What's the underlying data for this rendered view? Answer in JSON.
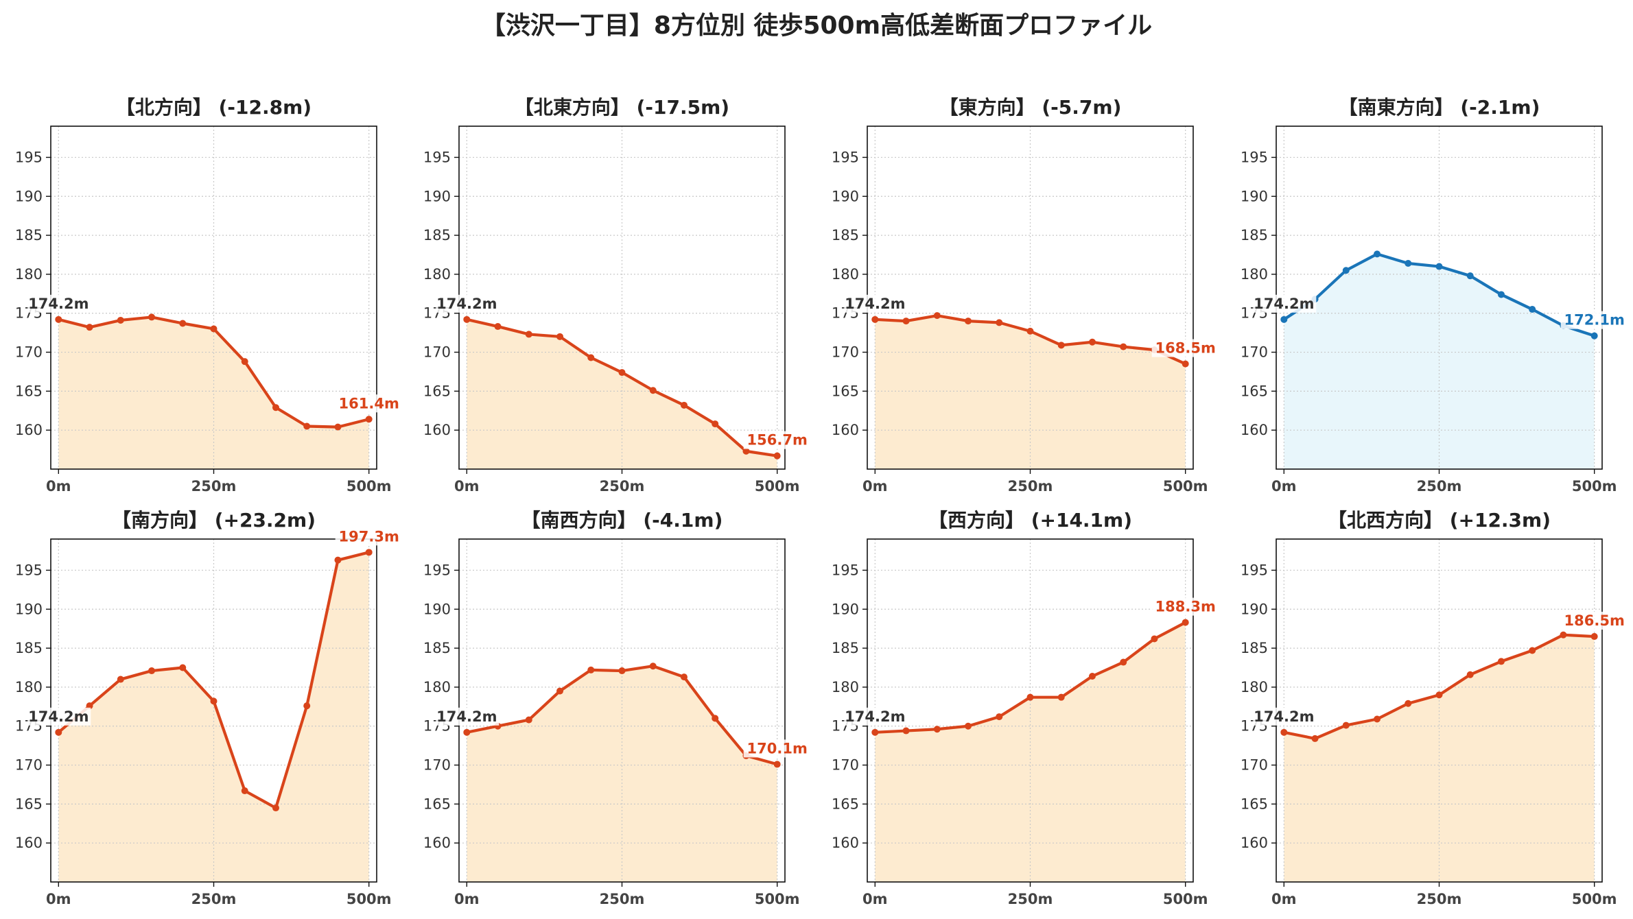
{
  "title": "【渋沢一丁目】8方位別 徒歩500m高低差断面プロファイル",
  "colors": {
    "warm_line": "#d9441a",
    "warm_fill": "#fdebd0",
    "cool_line": "#1a75b8",
    "cool_fill": "#e8f6fb",
    "start_label": "#333333",
    "grid": "#c8c8c8"
  },
  "chart_data": [
    {
      "type": "area",
      "title": "【北方向】 (-12.8m)",
      "x": [
        0,
        50,
        100,
        150,
        200,
        250,
        300,
        350,
        400,
        450,
        500
      ],
      "y": [
        174.2,
        173.2,
        174.1,
        174.5,
        173.7,
        173.0,
        168.8,
        162.9,
        160.5,
        160.4,
        161.4
      ],
      "start_label": "174.2m",
      "end_label": "161.4m",
      "x_ticks": [
        "0m",
        "250m",
        "500m"
      ],
      "y_ticks": [
        "160",
        "165",
        "170",
        "175",
        "180",
        "185",
        "190",
        "195"
      ],
      "ylim": [
        155,
        199
      ],
      "grid": true,
      "theme": "warm"
    },
    {
      "type": "area",
      "title": "【北東方向】 (-17.5m)",
      "x": [
        0,
        50,
        100,
        150,
        200,
        250,
        300,
        350,
        400,
        450,
        500
      ],
      "y": [
        174.2,
        173.3,
        172.3,
        172.0,
        169.3,
        167.4,
        165.1,
        163.2,
        160.8,
        157.3,
        156.7
      ],
      "start_label": "174.2m",
      "end_label": "156.7m",
      "x_ticks": [
        "0m",
        "250m",
        "500m"
      ],
      "y_ticks": [
        "160",
        "165",
        "170",
        "175",
        "180",
        "185",
        "190",
        "195"
      ],
      "ylim": [
        155,
        199
      ],
      "grid": true,
      "theme": "warm"
    },
    {
      "type": "area",
      "title": "【東方向】 (-5.7m)",
      "x": [
        0,
        50,
        100,
        150,
        200,
        250,
        300,
        350,
        400,
        450,
        500
      ],
      "y": [
        174.2,
        174.0,
        174.7,
        174.0,
        173.8,
        172.7,
        170.9,
        171.3,
        170.7,
        170.3,
        168.5
      ],
      "start_label": "174.2m",
      "end_label": "168.5m",
      "x_ticks": [
        "0m",
        "250m",
        "500m"
      ],
      "y_ticks": [
        "160",
        "165",
        "170",
        "175",
        "180",
        "185",
        "190",
        "195"
      ],
      "ylim": [
        155,
        199
      ],
      "grid": true,
      "theme": "warm"
    },
    {
      "type": "area",
      "title": "【南東方向】 (-2.1m)",
      "x": [
        0,
        50,
        100,
        150,
        200,
        250,
        300,
        350,
        400,
        450,
        500
      ],
      "y": [
        174.2,
        176.8,
        180.5,
        182.6,
        181.4,
        181.0,
        179.8,
        177.4,
        175.5,
        173.4,
        172.1
      ],
      "start_label": "174.2m",
      "end_label": "172.1m",
      "x_ticks": [
        "0m",
        "250m",
        "500m"
      ],
      "y_ticks": [
        "160",
        "165",
        "170",
        "175",
        "180",
        "185",
        "190",
        "195"
      ],
      "ylim": [
        155,
        199
      ],
      "grid": true,
      "theme": "cool"
    },
    {
      "type": "area",
      "title": "【南方向】 (+23.2m)",
      "x": [
        0,
        50,
        100,
        150,
        200,
        250,
        300,
        350,
        400,
        450,
        500
      ],
      "y": [
        174.2,
        177.6,
        181.0,
        182.1,
        182.5,
        178.2,
        166.7,
        164.5,
        177.6,
        196.3,
        197.3
      ],
      "start_label": "174.2m",
      "end_label": "197.3m",
      "x_ticks": [
        "0m",
        "250m",
        "500m"
      ],
      "y_ticks": [
        "160",
        "165",
        "170",
        "175",
        "180",
        "185",
        "190",
        "195"
      ],
      "ylim": [
        155,
        199
      ],
      "grid": true,
      "theme": "warm"
    },
    {
      "type": "area",
      "title": "【南西方向】 (-4.1m)",
      "x": [
        0,
        50,
        100,
        150,
        200,
        250,
        300,
        350,
        400,
        450,
        500
      ],
      "y": [
        174.2,
        175.0,
        175.8,
        179.5,
        182.2,
        182.1,
        182.7,
        181.3,
        176.0,
        171.2,
        170.1
      ],
      "start_label": "174.2m",
      "end_label": "170.1m",
      "x_ticks": [
        "0m",
        "250m",
        "500m"
      ],
      "y_ticks": [
        "160",
        "165",
        "170",
        "175",
        "180",
        "185",
        "190",
        "195"
      ],
      "ylim": [
        155,
        199
      ],
      "grid": true,
      "theme": "warm"
    },
    {
      "type": "area",
      "title": "【西方向】 (+14.1m)",
      "x": [
        0,
        50,
        100,
        150,
        200,
        250,
        300,
        350,
        400,
        450,
        500
      ],
      "y": [
        174.2,
        174.4,
        174.6,
        175.0,
        176.2,
        178.7,
        178.7,
        181.4,
        183.2,
        186.2,
        188.3
      ],
      "start_label": "174.2m",
      "end_label": "188.3m",
      "x_ticks": [
        "0m",
        "250m",
        "500m"
      ],
      "y_ticks": [
        "160",
        "165",
        "170",
        "175",
        "180",
        "185",
        "190",
        "195"
      ],
      "ylim": [
        155,
        199
      ],
      "grid": true,
      "theme": "warm"
    },
    {
      "type": "area",
      "title": "【北西方向】 (+12.3m)",
      "x": [
        0,
        50,
        100,
        150,
        200,
        250,
        300,
        350,
        400,
        450,
        500
      ],
      "y": [
        174.2,
        173.4,
        175.1,
        175.9,
        177.9,
        179.0,
        181.6,
        183.3,
        184.7,
        186.7,
        186.5
      ],
      "start_label": "174.2m",
      "end_label": "186.5m",
      "x_ticks": [
        "0m",
        "250m",
        "500m"
      ],
      "y_ticks": [
        "160",
        "165",
        "170",
        "175",
        "180",
        "185",
        "190",
        "195"
      ],
      "ylim": [
        155,
        199
      ],
      "grid": true,
      "theme": "warm"
    }
  ]
}
